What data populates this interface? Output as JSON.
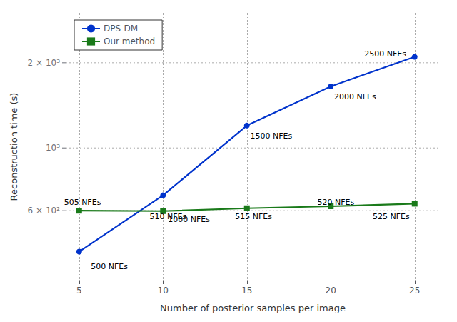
{
  "chart_data": {
    "type": "line",
    "xlabel": "Number of posterior samples per image",
    "ylabel": "Reconstruction time (s)",
    "x": [
      5,
      10,
      15,
      20,
      25
    ],
    "series": [
      {
        "name": "DPS-DM",
        "color": "#0033cc",
        "marker": "circle",
        "values": [
          430,
          680,
          1200,
          1650,
          2100
        ]
      },
      {
        "name": "Our method",
        "color": "#1a7a1a",
        "marker": "square",
        "values": [
          600,
          598,
          612,
          622,
          635
        ]
      }
    ],
    "xlim": [
      4.2,
      26.5
    ],
    "xticks": [
      5,
      10,
      15,
      20,
      25
    ],
    "ylim": [
      340,
      3000
    ],
    "yticks": [
      {
        "value": 600,
        "label": "6 × 10²"
      },
      {
        "value": 1000,
        "label": "10³"
      },
      {
        "value": 2000,
        "label": "2 × 10³"
      }
    ],
    "log": "y",
    "grid": true,
    "legend": "upper left",
    "annotations": [
      {
        "x": 5.7,
        "y": 380,
        "text": "500 NFEs"
      },
      {
        "x": 10.3,
        "y": 560,
        "text": "1000 NFEs"
      },
      {
        "x": 15.2,
        "y": 1100,
        "text": "1500 NFEs"
      },
      {
        "x": 20.2,
        "y": 1520,
        "text": "2000 NFEs"
      },
      {
        "x": 22.0,
        "y": 2150,
        "text": "2500 NFEs"
      },
      {
        "x": 4.1,
        "y": 642,
        "text": "505 NFEs"
      },
      {
        "x": 9.2,
        "y": 572,
        "text": "510 NFEs"
      },
      {
        "x": 14.3,
        "y": 572,
        "text": "515 NFEs"
      },
      {
        "x": 19.2,
        "y": 642,
        "text": "520 NFEs"
      },
      {
        "x": 22.5,
        "y": 572,
        "text": "525 NFEs"
      }
    ]
  }
}
